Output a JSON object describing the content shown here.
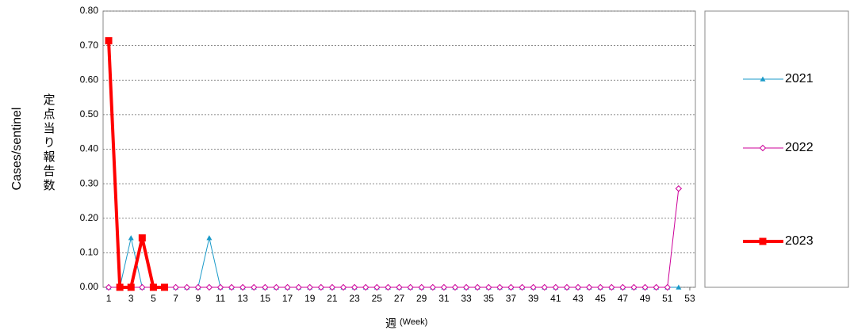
{
  "chart_data": {
    "type": "line",
    "ylabel": "Cases/sentinel",
    "ylabel_ja": "定点当り報告数",
    "xlabel": "週",
    "xlabel_note": "(Week)",
    "x": [
      1,
      2,
      3,
      4,
      5,
      6,
      7,
      8,
      9,
      10,
      11,
      12,
      13,
      14,
      15,
      16,
      17,
      18,
      19,
      20,
      21,
      22,
      23,
      24,
      25,
      26,
      27,
      28,
      29,
      30,
      31,
      32,
      33,
      34,
      35,
      36,
      37,
      38,
      39,
      40,
      41,
      42,
      43,
      44,
      45,
      46,
      47,
      48,
      49,
      50,
      51,
      52,
      53
    ],
    "xlim": [
      0.5,
      53.5
    ],
    "xticks": [
      1,
      3,
      5,
      7,
      9,
      11,
      13,
      15,
      17,
      19,
      21,
      23,
      25,
      27,
      29,
      31,
      33,
      35,
      37,
      39,
      41,
      43,
      45,
      47,
      49,
      51,
      53
    ],
    "ylim": [
      0,
      0.8
    ],
    "yticks": [
      {
        "value": 0,
        "label": "0.00"
      },
      {
        "value": 0.1,
        "label": "0.10"
      },
      {
        "value": 0.2,
        "label": "0.20"
      },
      {
        "value": 0.3,
        "label": "0.30"
      },
      {
        "value": 0.4,
        "label": "0.40"
      },
      {
        "value": 0.5,
        "label": "0.50"
      },
      {
        "value": 0.6,
        "label": "0.60"
      },
      {
        "value": 0.7,
        "label": "0.70"
      },
      {
        "value": 0.8,
        "label": "0.80"
      }
    ],
    "grid": true,
    "legend": "right",
    "series": [
      {
        "name": "2021",
        "color": "#1a9ac9",
        "marker": "triangle",
        "width": 1,
        "values": [
          0,
          0,
          0.143,
          0,
          0,
          0,
          0,
          0,
          0,
          0.143,
          0,
          0,
          0,
          0,
          0,
          0,
          0,
          0,
          0,
          0,
          0,
          0,
          0,
          0,
          0,
          0,
          0,
          0,
          0,
          0,
          0,
          0,
          0,
          0,
          0,
          0,
          0,
          0,
          0,
          0,
          0,
          0,
          0,
          0,
          0,
          0,
          0,
          0,
          0,
          0,
          0,
          0,
          null
        ]
      },
      {
        "name": "2022",
        "color": "#cc0099",
        "marker": "diamond",
        "width": 1,
        "values": [
          0,
          0,
          0,
          0,
          0,
          0,
          0,
          0,
          0,
          0,
          0,
          0,
          0,
          0,
          0,
          0,
          0,
          0,
          0,
          0,
          0,
          0,
          0,
          0,
          0,
          0,
          0,
          0,
          0,
          0,
          0,
          0,
          0,
          0,
          0,
          0,
          0,
          0,
          0,
          0,
          0,
          0,
          0,
          0,
          0,
          0,
          0,
          0,
          0,
          0,
          0,
          0.286,
          null
        ]
      },
      {
        "name": "2023",
        "color": "#ff0000",
        "marker": "square",
        "width": 4,
        "values": [
          0.714,
          0,
          0,
          0.143,
          0,
          0,
          null,
          null,
          null,
          null,
          null,
          null,
          null,
          null,
          null,
          null,
          null,
          null,
          null,
          null,
          null,
          null,
          null,
          null,
          null,
          null,
          null,
          null,
          null,
          null,
          null,
          null,
          null,
          null,
          null,
          null,
          null,
          null,
          null,
          null,
          null,
          null,
          null,
          null,
          null,
          null,
          null,
          null,
          null,
          null,
          null,
          null,
          null
        ]
      }
    ]
  }
}
